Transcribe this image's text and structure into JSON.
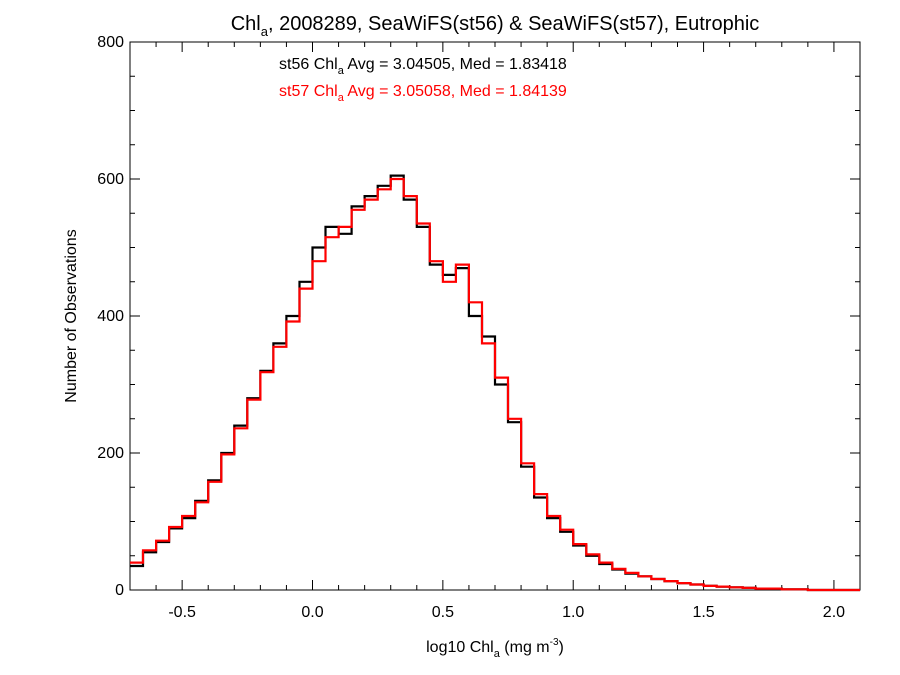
{
  "chart_data": {
    "type": "line",
    "step": true,
    "title": {
      "pre": "Chl",
      "sub": "a",
      "post": ", 2008289, SeaWiFS(st56) & SeaWiFS(st57), Eutrophic"
    },
    "xlabel": {
      "pre": "log10 Chl",
      "sub": "a",
      "mid": " (mg m",
      "sup": "-3",
      "post": ")"
    },
    "ylabel": "Number of Observations",
    "xlim": [
      -0.7,
      2.1
    ],
    "ylim": [
      0,
      800
    ],
    "x_ticks": [
      -0.5,
      0.0,
      0.5,
      1.0,
      1.5,
      2.0
    ],
    "x_tick_labels": [
      "-0.5",
      "0.0",
      "0.5",
      "1.0",
      "1.5",
      "2.0"
    ],
    "y_ticks": [
      0,
      200,
      400,
      600,
      800
    ],
    "y_tick_labels": [
      "0",
      "200",
      "400",
      "600",
      "800"
    ],
    "grid": false,
    "annotations": [
      {
        "pre": "st56 Chl",
        "sub": "a",
        "post": " Avg = 3.04505, Med = 1.83418",
        "color": "#000000"
      },
      {
        "pre": "st57 Chl",
        "sub": "a",
        "post": " Avg = 3.05058, Med = 1.84139",
        "color": "#ff0000"
      }
    ],
    "series": [
      {
        "color": "#000000",
        "x": [
          -0.7,
          -0.65,
          -0.6,
          -0.55,
          -0.5,
          -0.45,
          -0.4,
          -0.35,
          -0.3,
          -0.25,
          -0.2,
          -0.15,
          -0.1,
          -0.05,
          0.0,
          0.05,
          0.1,
          0.15,
          0.2,
          0.25,
          0.3,
          0.35,
          0.4,
          0.45,
          0.5,
          0.55,
          0.6,
          0.65,
          0.7,
          0.75,
          0.8,
          0.85,
          0.9,
          0.95,
          1.0,
          1.05,
          1.1,
          1.15,
          1.2,
          1.25,
          1.3,
          1.35,
          1.4,
          1.45,
          1.5,
          1.55,
          1.6,
          1.65,
          1.7,
          1.75,
          1.8,
          1.85,
          1.9,
          1.95,
          2.0,
          2.05
        ],
        "y": [
          35,
          55,
          70,
          90,
          105,
          130,
          160,
          200,
          240,
          280,
          320,
          360,
          400,
          450,
          500,
          530,
          520,
          560,
          575,
          590,
          605,
          570,
          530,
          475,
          460,
          470,
          400,
          370,
          300,
          245,
          180,
          135,
          105,
          85,
          65,
          50,
          38,
          30,
          24,
          20,
          16,
          13,
          10,
          8,
          6,
          5,
          4,
          3,
          2,
          2,
          1,
          1,
          0,
          0,
          0,
          0
        ]
      },
      {
        "color": "#ff0000",
        "x": [
          -0.7,
          -0.65,
          -0.6,
          -0.55,
          -0.5,
          -0.45,
          -0.4,
          -0.35,
          -0.3,
          -0.25,
          -0.2,
          -0.15,
          -0.1,
          -0.05,
          0.0,
          0.05,
          0.1,
          0.15,
          0.2,
          0.25,
          0.3,
          0.35,
          0.4,
          0.45,
          0.5,
          0.55,
          0.6,
          0.65,
          0.7,
          0.75,
          0.8,
          0.85,
          0.9,
          0.95,
          1.0,
          1.05,
          1.1,
          1.15,
          1.2,
          1.25,
          1.3,
          1.35,
          1.4,
          1.45,
          1.5,
          1.55,
          1.6,
          1.65,
          1.7,
          1.75,
          1.8,
          1.85,
          1.9,
          1.95,
          2.0,
          2.05
        ],
        "y": [
          40,
          58,
          72,
          92,
          108,
          128,
          158,
          198,
          236,
          278,
          318,
          355,
          392,
          440,
          480,
          515,
          530,
          555,
          570,
          585,
          600,
          575,
          535,
          480,
          450,
          475,
          420,
          360,
          310,
          250,
          185,
          140,
          108,
          88,
          67,
          52,
          40,
          31,
          25,
          20,
          16,
          13,
          10,
          8,
          6,
          5,
          4,
          3,
          2,
          2,
          1,
          1,
          0,
          0,
          0,
          0
        ]
      }
    ]
  }
}
